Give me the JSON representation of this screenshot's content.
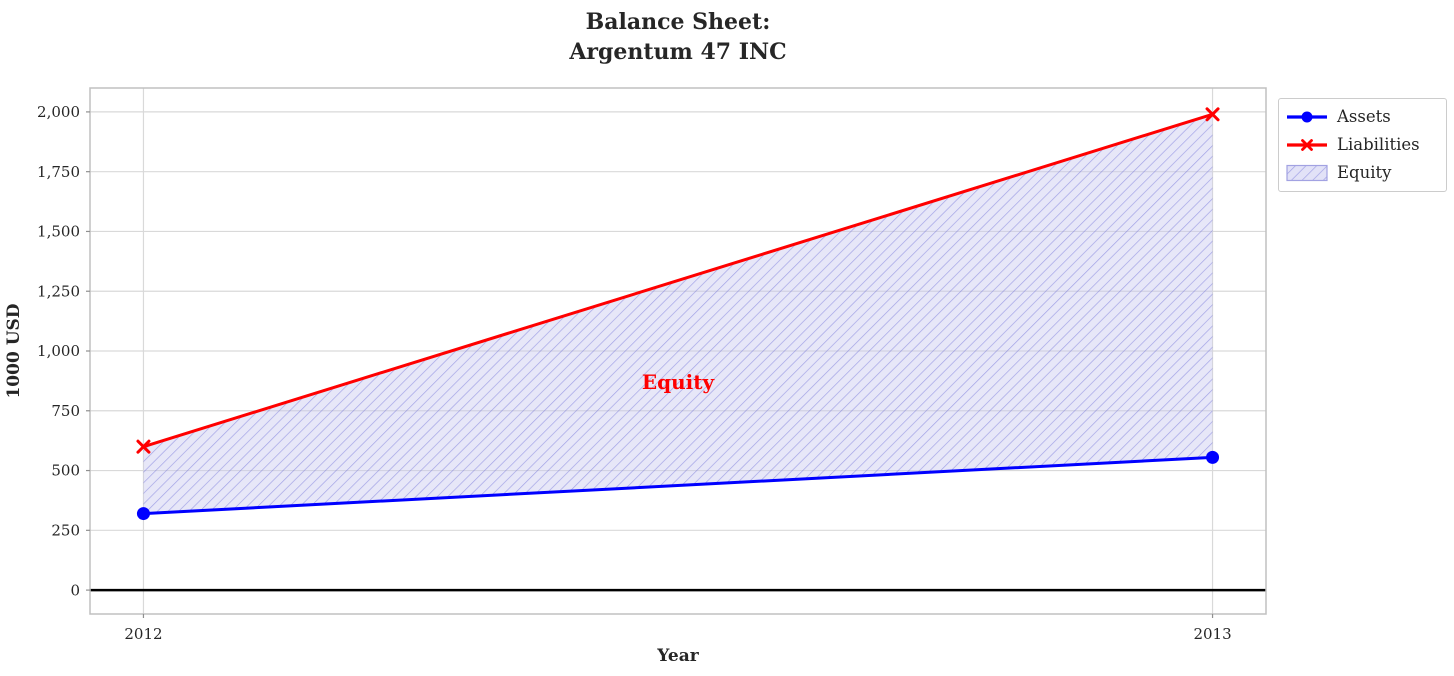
{
  "title": {
    "line1": "Balance Sheet:",
    "line2": "Argentum 47 INC"
  },
  "chart_data": {
    "type": "line",
    "title": "Balance Sheet: Argentum 47 INC",
    "xlabel": "Year",
    "ylabel": "1000 USD",
    "x": [
      2012,
      2013
    ],
    "x_tick_labels": [
      "2012",
      "2013"
    ],
    "y_ticks": [
      0,
      250,
      500,
      750,
      1000,
      1250,
      1500,
      1750,
      2000
    ],
    "y_tick_labels": [
      "0",
      "250",
      "500",
      "750",
      "1,000",
      "1,250",
      "1,500",
      "1,750",
      "2,000"
    ],
    "xlim": [
      2011.95,
      2013.05
    ],
    "ylim": [
      -100,
      2100
    ],
    "grid": true,
    "series": [
      {
        "name": "Assets",
        "values": [
          320,
          555
        ],
        "color": "#0000ff",
        "marker": "circle",
        "line_width": 3
      },
      {
        "name": "Liabilities",
        "values": [
          600,
          1990
        ],
        "color": "#ff0000",
        "marker": "x",
        "line_width": 3
      }
    ],
    "area": {
      "name": "Equity",
      "upper_series": "Liabilities",
      "lower_series": "Assets",
      "values": [
        280,
        1435
      ],
      "face_color": "#e6e6fa",
      "hatch": "/",
      "hatch_color": "#6c6cd6"
    },
    "zero_line": {
      "y": 0,
      "color": "#000000"
    },
    "annotation": {
      "text": "Equity",
      "x": 2012.5,
      "y": 870,
      "color": "#ff0000"
    },
    "legend": {
      "location": "upper right, outside plot",
      "items": [
        {
          "label": "Assets",
          "swatch": "line-circle",
          "color": "#0000ff"
        },
        {
          "label": "Liabilities",
          "swatch": "line-x",
          "color": "#ff0000"
        },
        {
          "label": "Equity",
          "swatch": "hatched-patch",
          "color": "#e6e6fa"
        }
      ]
    }
  }
}
